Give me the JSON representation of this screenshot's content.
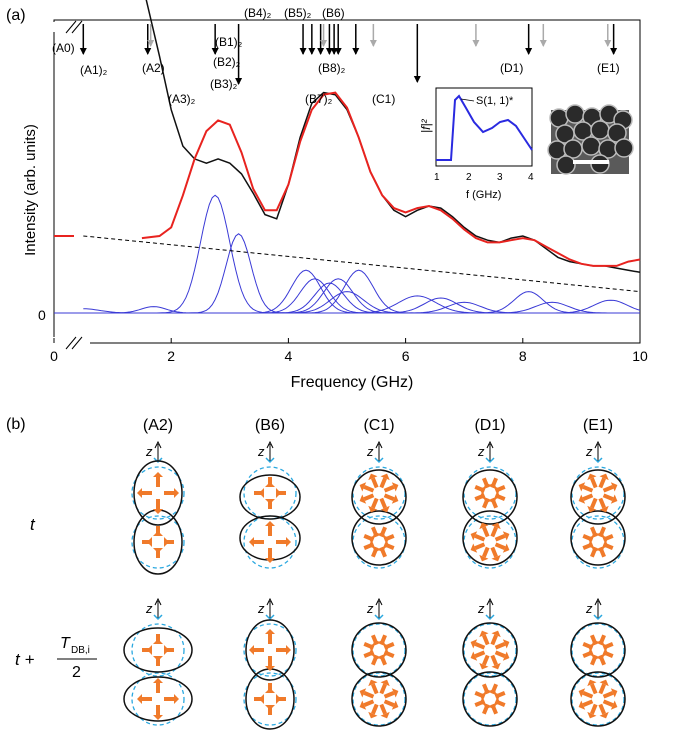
{
  "panel_a": {
    "label": "(a)",
    "ylabel": "Intensity (arb. units)",
    "xlabel": "Frequency (GHz)",
    "y_zero_tick": "0",
    "mode_labels": [
      {
        "text": "(A0)",
        "f": 0.3
      },
      {
        "text": "(A1)₂",
        "f": 1.8
      },
      {
        "text": "(A2)",
        "f": 2.8
      },
      {
        "text": "(A3)₂",
        "f": 3.2
      },
      {
        "text": "(B1)₂",
        "f": 4.2
      },
      {
        "text": "(B2)₂",
        "f": 4.2
      },
      {
        "text": "(B3)₂",
        "f": 4.2
      },
      {
        "text": "(B4)₂",
        "f": 4.6
      },
      {
        "text": "(B5)₂",
        "f": 4.95
      },
      {
        "text": "(B6)",
        "f": 5.25
      },
      {
        "text": "(B7)₂",
        "f": 4.95
      },
      {
        "text": "(B8)₂",
        "f": 5.3
      },
      {
        "text": "(C1)",
        "f": 6.2
      },
      {
        "text": "(D1)",
        "f": 8.1
      },
      {
        "text": "(E1)",
        "f": 9.5
      }
    ],
    "black_arrows_ghz": [
      0.5,
      1.6,
      2.75,
      3.15,
      4.25,
      4.4,
      4.55,
      4.7,
      4.78,
      4.85,
      5.15,
      6.2,
      8.1,
      9.55
    ],
    "gray_arrows_ghz": [
      1.65,
      4.6,
      5.45,
      7.2,
      8.35,
      9.45
    ],
    "inset": {
      "ylabel": "|f|²",
      "xlabel": "f (GHz)",
      "annotation": "S(1, 1)*",
      "xticks": [
        "1",
        "2",
        "3",
        "4"
      ]
    }
  },
  "chart_data": {
    "type": "line",
    "title": "",
    "xlabel": "Frequency (GHz)",
    "ylabel": "Intensity (arb. units)",
    "xlim": [
      0,
      10
    ],
    "xticks": [
      "0",
      "2",
      "4",
      "6",
      "8",
      "10"
    ],
    "x": [
      1.5,
      1.8,
      2.0,
      2.2,
      2.4,
      2.6,
      2.8,
      3.0,
      3.2,
      3.4,
      3.6,
      3.8,
      4.0,
      4.2,
      4.4,
      4.6,
      4.8,
      5.0,
      5.2,
      5.4,
      5.6,
      5.8,
      6.0,
      6.2,
      6.4,
      6.6,
      6.8,
      7.0,
      7.2,
      7.4,
      7.6,
      7.8,
      8.0,
      8.2,
      8.4,
      8.6,
      8.8,
      9.0,
      9.2,
      9.4,
      9.6,
      9.8,
      10.0
    ],
    "series": [
      {
        "color": "#111111",
        "values": [
          1.55,
          1.2,
          0.95,
          0.78,
          0.72,
          0.7,
          0.72,
          0.7,
          0.65,
          0.56,
          0.46,
          0.44,
          0.6,
          0.82,
          0.98,
          1.03,
          1.02,
          0.95,
          0.82,
          0.66,
          0.55,
          0.48,
          0.45,
          0.48,
          0.5,
          0.49,
          0.45,
          0.4,
          0.36,
          0.34,
          0.33,
          0.35,
          0.36,
          0.34,
          0.3,
          0.26,
          0.24,
          0.23,
          0.22,
          0.22,
          0.21,
          0.2,
          0.19
        ]
      },
      {
        "color": "#e8231f",
        "values": [
          0.35,
          0.36,
          0.4,
          0.55,
          0.72,
          0.85,
          0.9,
          0.88,
          0.75,
          0.58,
          0.48,
          0.48,
          0.6,
          0.8,
          0.95,
          1.02,
          1.03,
          0.96,
          0.82,
          0.66,
          0.55,
          0.49,
          0.47,
          0.49,
          0.5,
          0.48,
          0.44,
          0.39,
          0.35,
          0.33,
          0.33,
          0.34,
          0.35,
          0.34,
          0.31,
          0.28,
          0.25,
          0.23,
          0.22,
          0.22,
          0.22,
          0.24,
          0.25
        ]
      }
    ],
    "background_dashed": {
      "x": [
        0.5,
        10
      ],
      "values": [
        0.36,
        0.1
      ]
    },
    "fit_peaks": [
      {
        "center": 2.75,
        "amp": 0.55,
        "width": 0.35
      },
      {
        "center": 3.15,
        "amp": 0.37,
        "width": 0.3
      },
      {
        "center": 4.3,
        "amp": 0.2,
        "width": 0.35
      },
      {
        "center": 4.45,
        "amp": 0.16,
        "width": 0.35
      },
      {
        "center": 4.7,
        "amp": 0.14,
        "width": 0.35
      },
      {
        "center": 4.85,
        "amp": 0.16,
        "width": 0.35
      },
      {
        "center": 5.2,
        "amp": 0.2,
        "width": 0.35
      },
      {
        "center": 5.0,
        "amp": 0.1,
        "width": 0.4
      },
      {
        "center": 6.2,
        "amp": 0.08,
        "width": 0.45
      },
      {
        "center": 6.6,
        "amp": 0.07,
        "width": 0.4
      },
      {
        "center": 7.0,
        "amp": 0.05,
        "width": 0.4
      },
      {
        "center": 8.1,
        "amp": 0.1,
        "width": 0.35
      },
      {
        "center": 8.5,
        "amp": 0.05,
        "width": 0.4
      },
      {
        "center": 9.5,
        "amp": 0.06,
        "width": 0.4
      },
      {
        "center": 1.7,
        "amp": 0.03,
        "width": 0.3
      },
      {
        "center": 0.5,
        "amp": 0.02,
        "width": 0.4
      }
    ],
    "fit_color": "#3a3ad6"
  },
  "panel_b": {
    "label": "(b)",
    "columns": [
      "(A2)",
      "(B6)",
      "(C1)",
      "(D1)",
      "(E1)"
    ],
    "axis_label": "z",
    "row_t": "t",
    "row_t2_prefix": "t +",
    "row_t2_num": "T",
    "row_t2_sub": "DB,i",
    "row_t2_den": "2"
  }
}
